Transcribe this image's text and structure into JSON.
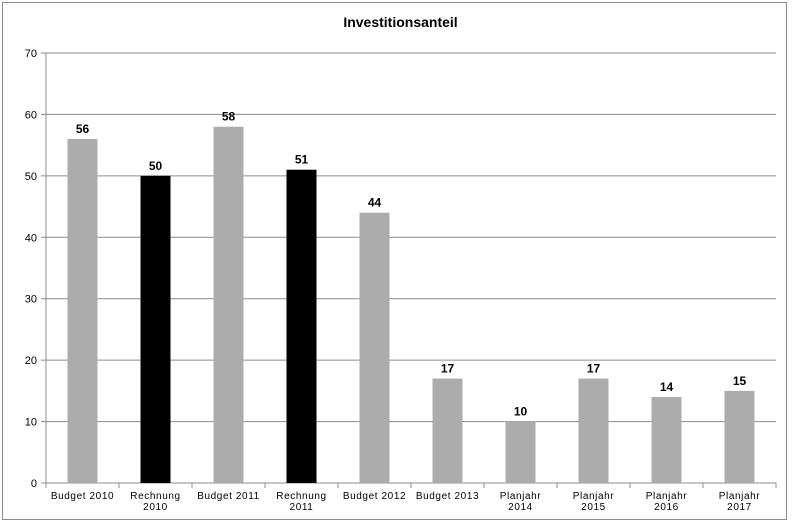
{
  "chart_data": {
    "type": "bar",
    "title": "Investitionsanteil",
    "xlabel": "",
    "ylabel": "",
    "ylim": [
      0,
      70
    ],
    "yticks": [
      0,
      10,
      20,
      30,
      40,
      50,
      60,
      70
    ],
    "grid": true,
    "legend": "none",
    "categories": [
      [
        "Budget 2010"
      ],
      [
        "Rechnung",
        "2010"
      ],
      [
        "Budget 2011"
      ],
      [
        "Rechnung",
        "2011"
      ],
      [
        "Budget 2012"
      ],
      [
        "Budget 2013"
      ],
      [
        "Planjahr",
        "2014"
      ],
      [
        "Planjahr",
        "2015"
      ],
      [
        "Planjahr",
        "2016"
      ],
      [
        "Planjahr",
        "2017"
      ]
    ],
    "values": [
      56,
      50,
      58,
      51,
      44,
      17,
      10,
      17,
      14,
      15
    ],
    "bar_colors": [
      "#acacac",
      "#000000",
      "#acacac",
      "#000000",
      "#acacac",
      "#acacac",
      "#acacac",
      "#acacac",
      "#acacac",
      "#acacac"
    ]
  }
}
